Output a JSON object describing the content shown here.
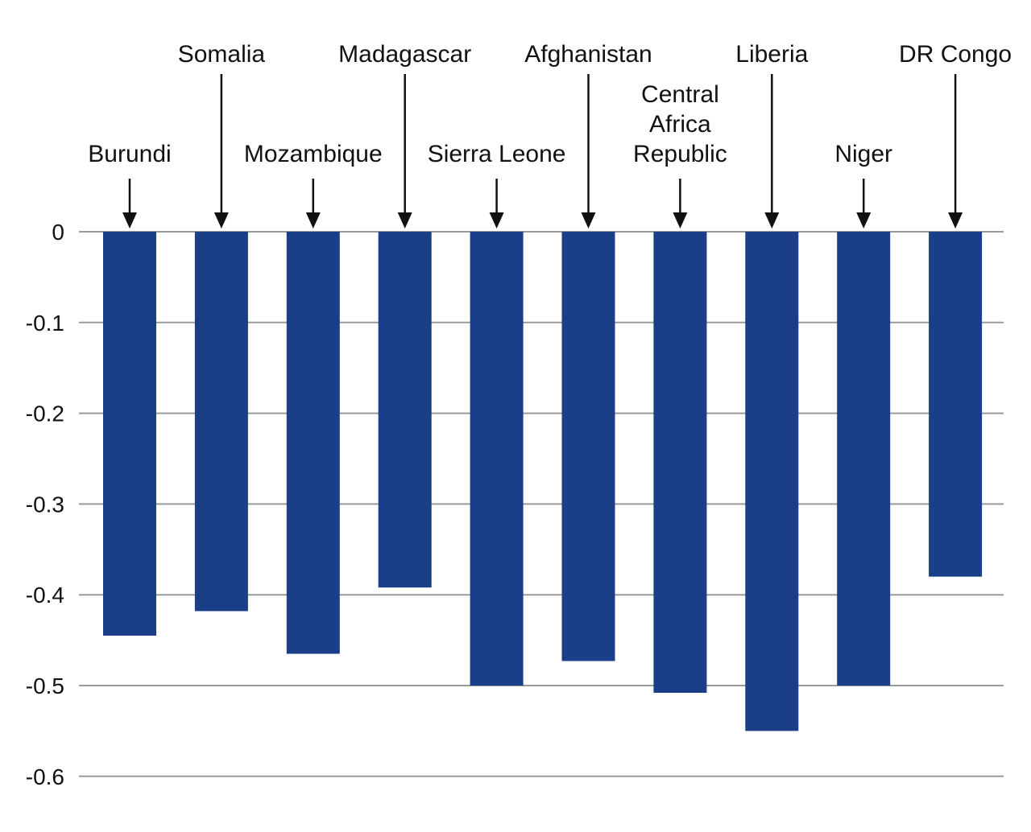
{
  "chart_data": {
    "type": "bar",
    "categories": [
      "Burundi",
      "Somalia",
      "Mozambique",
      "Madagascar",
      "Sierra Leone",
      "Afghanistan",
      "Central Africa Republic",
      "Liberia",
      "Niger",
      "DR Congo"
    ],
    "label_lines": [
      [
        "Burundi"
      ],
      [
        "Somalia"
      ],
      [
        "Mozambique"
      ],
      [
        "Madagascar"
      ],
      [
        "Sierra Leone"
      ],
      [
        "Afghanistan"
      ],
      [
        "Central",
        "Africa",
        "Republic"
      ],
      [
        "Liberia"
      ],
      [
        "Niger"
      ],
      [
        "DR Congo"
      ]
    ],
    "values": [
      -0.445,
      -0.418,
      -0.465,
      -0.392,
      -0.5,
      -0.473,
      -0.508,
      -0.55,
      -0.5,
      -0.38
    ],
    "yticks": [
      0,
      -0.1,
      -0.2,
      -0.3,
      -0.4,
      -0.5,
      -0.6
    ],
    "ytick_labels": [
      "0",
      "-0.1",
      "-0.2",
      "-0.3",
      "-0.4",
      "-0.5",
      "-0.6"
    ],
    "ylim": [
      -0.6,
      0
    ],
    "title": "",
    "xlabel": "",
    "ylabel": "",
    "grid": true,
    "bar_color": "#1a3e87"
  }
}
